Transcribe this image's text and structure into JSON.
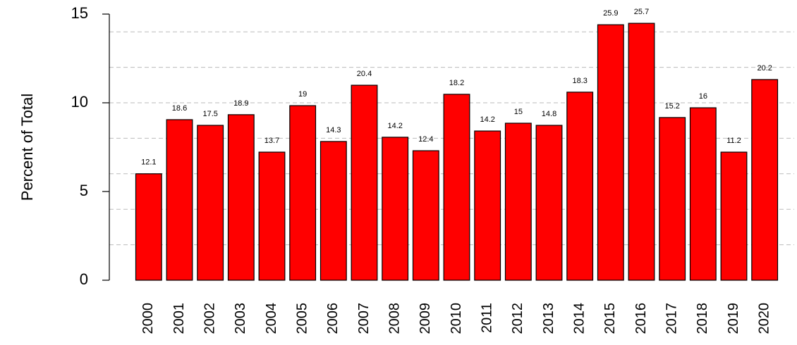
{
  "chart_data": {
    "type": "bar",
    "y_label": "Percent of Total",
    "categories": [
      "2000",
      "2001",
      "2002",
      "2003",
      "2004",
      "2005",
      "2006",
      "2007",
      "2008",
      "2009",
      "2010",
      "2011",
      "2012",
      "2013",
      "2014",
      "2015",
      "2016",
      "2017",
      "2018",
      "2019",
      "2020"
    ],
    "values": [
      6.0,
      9.05,
      8.73,
      9.33,
      7.22,
      9.84,
      7.82,
      10.99,
      8.06,
      7.3,
      10.48,
      8.41,
      8.85,
      8.73,
      10.6,
      14.4,
      14.48,
      9.17,
      9.72,
      7.22,
      11.31
    ],
    "data_labels": [
      12.1,
      18.6,
      17.5,
      18.9,
      13.7,
      19,
      14.3,
      20.4,
      14.2,
      12.4,
      18.2,
      14.2,
      15,
      14.8,
      18.3,
      25.9,
      25.7,
      15.2,
      16,
      11.2,
      20.2
    ],
    "color": "#ff0000",
    "ylim": [
      0,
      15
    ],
    "yticks": [
      0,
      5,
      10,
      15
    ],
    "grid": true,
    "grid_lines": [
      2,
      4,
      6,
      8,
      10,
      12,
      14
    ]
  }
}
